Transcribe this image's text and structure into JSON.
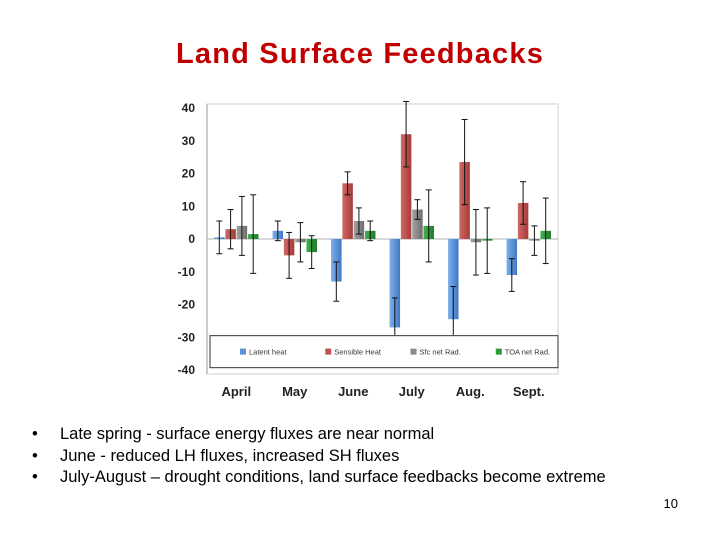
{
  "slide": {
    "title": "Land Surface Feedbacks",
    "bullets": [
      "Late spring - surface energy fluxes are near normal",
      "June - reduced LH fluxes, increased SH fluxes",
      "July-August – drought conditions, land surface feedbacks become extreme"
    ],
    "bullet_symbol": "•",
    "page_number": "10"
  },
  "chart_data": {
    "type": "bar",
    "title": "",
    "xlabel": "",
    "ylabel": "",
    "ylim": [
      -40,
      40
    ],
    "yticks": [
      40,
      30,
      20,
      10,
      0,
      -10,
      -20,
      -30,
      -40
    ],
    "categories": [
      "April",
      "May",
      "June",
      "July",
      "Aug.",
      "Sept."
    ],
    "legend_position": "bottom-inside",
    "series": [
      {
        "name": "Latent heat",
        "color": "#5b93d6",
        "values": [
          0.5,
          2.5,
          -13,
          -27,
          -24.5,
          -11
        ],
        "errors": [
          5,
          3,
          6,
          9,
          10,
          5
        ]
      },
      {
        "name": "Sensible Heat",
        "color": "#c0504d",
        "values": [
          3,
          -5,
          17,
          32,
          23.5,
          11
        ],
        "errors": [
          6,
          7,
          3.5,
          10,
          13,
          6.5
        ]
      },
      {
        "name": "Sfc net Rad.",
        "color": "#8a8a8a",
        "values": [
          4,
          -1,
          5.5,
          9,
          -1,
          -0.5
        ],
        "errors": [
          9,
          6,
          4,
          3,
          10,
          4.5
        ]
      },
      {
        "name": "TOA net Rad.",
        "color": "#2e9a3a",
        "values": [
          1.5,
          -4,
          2.5,
          4,
          -0.5,
          2.5
        ],
        "errors": [
          12,
          5,
          3,
          11,
          10,
          10
        ]
      }
    ]
  }
}
